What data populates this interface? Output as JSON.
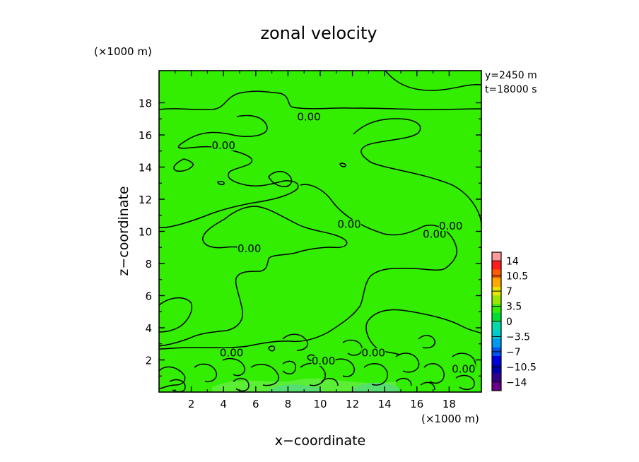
{
  "chart_data": {
    "type": "heatmap",
    "title": "zonal velocity",
    "xlabel": "x−coordinate",
    "ylabel": "z−coordinate",
    "x_unit": "(×1000 m)",
    "y_unit": "(×1000 m)",
    "xlim": [
      0,
      20
    ],
    "ylim": [
      0,
      20
    ],
    "x_ticks": [
      "2",
      "4",
      "6",
      "8",
      "10",
      "12",
      "14",
      "16",
      "18"
    ],
    "y_ticks": [
      "2",
      "4",
      "6",
      "8",
      "10",
      "12",
      "14",
      "16",
      "18"
    ],
    "info_lines": [
      "y=2450  m",
      "t=18000  s"
    ],
    "field_color": "#33ee00",
    "contour_level": 0,
    "contour_labels": [
      {
        "text": "0.00",
        "x": 9.3,
        "z": 17.0
      },
      {
        "text": "0.00",
        "x": 4.0,
        "z": 15.2
      },
      {
        "text": "0.00",
        "x": 11.8,
        "z": 10.3
      },
      {
        "text": "0.00",
        "x": 17.1,
        "z": 9.7
      },
      {
        "text": "0.00",
        "x": 18.1,
        "z": 10.2
      },
      {
        "text": "0.00",
        "x": 5.6,
        "z": 8.8
      },
      {
        "text": "0.00",
        "x": 4.5,
        "z": 2.3
      },
      {
        "text": "0.00",
        "x": 10.2,
        "z": 1.8
      },
      {
        "text": "0.00",
        "x": 13.3,
        "z": 2.3
      },
      {
        "text": "0.00",
        "x": 18.9,
        "z": 1.3
      }
    ],
    "colorbar": {
      "levels": [
        "14",
        "10.5",
        "7",
        "3.5",
        "0",
        "−3.5",
        "−7",
        "−10.5",
        "−14"
      ],
      "colors": [
        "#ff9a9a",
        "#ff1f1f",
        "#ff5a00",
        "#ffa800",
        "#e6e600",
        "#99e600",
        "#33ee00",
        "#00dd33",
        "#00ddaa",
        "#00cccc",
        "#0099ee",
        "#0055ee",
        "#0000dd",
        "#0000aa",
        "#330088",
        "#660088"
      ]
    }
  }
}
